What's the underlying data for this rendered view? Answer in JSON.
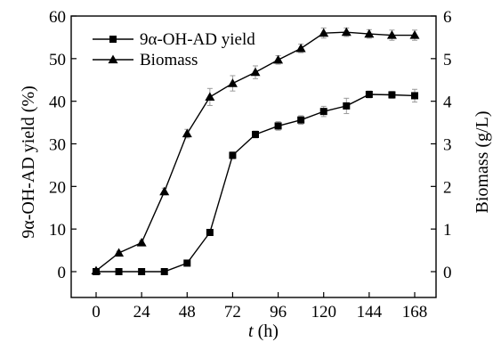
{
  "chart_data": {
    "type": "line",
    "xlabel_italic": "t",
    "xlabel_rest": " (h)",
    "ylabel": "9α-OH-AD yield (%)",
    "y2label": "Biomass (g/L)",
    "xlim": [
      0,
      168
    ],
    "ylim": [
      0,
      60
    ],
    "y2lim": [
      0,
      6
    ],
    "xticks": [
      0,
      24,
      48,
      72,
      96,
      120,
      144,
      168
    ],
    "yticks": [
      0,
      10,
      20,
      30,
      40,
      50,
      60
    ],
    "y2ticks": [
      0,
      1,
      2,
      3,
      4,
      5,
      6
    ],
    "grid": false,
    "legend_position": "top-left",
    "series": [
      {
        "name": "9α-OH-AD yield",
        "marker": "square",
        "axis": "left",
        "x": [
          0,
          12,
          24,
          36,
          48,
          60,
          72,
          84,
          96,
          108,
          120,
          132,
          144,
          156,
          168
        ],
        "y": [
          0,
          0,
          0,
          0,
          2,
          9.2,
          27.3,
          32.2,
          34.2,
          35.6,
          37.6,
          38.9,
          41.6,
          41.5,
          41.3
        ],
        "err": [
          0,
          0,
          0,
          0,
          0.5,
          0.6,
          0.8,
          0.8,
          1.0,
          1.0,
          1.2,
          1.8,
          0.8,
          0.8,
          1.5
        ]
      },
      {
        "name": "Biomass",
        "marker": "triangle",
        "axis": "right",
        "x": [
          0,
          12,
          24,
          36,
          48,
          60,
          72,
          84,
          96,
          108,
          120,
          132,
          144,
          156,
          168
        ],
        "y": [
          0.02,
          0.44,
          0.68,
          1.88,
          3.24,
          4.1,
          4.42,
          4.68,
          4.97,
          5.24,
          5.6,
          5.62,
          5.58,
          5.55,
          5.55
        ],
        "err": [
          0,
          0.04,
          0.05,
          0.08,
          0.1,
          0.2,
          0.18,
          0.15,
          0.1,
          0.1,
          0.12,
          0.1,
          0.1,
          0.12,
          0.12
        ]
      }
    ]
  }
}
